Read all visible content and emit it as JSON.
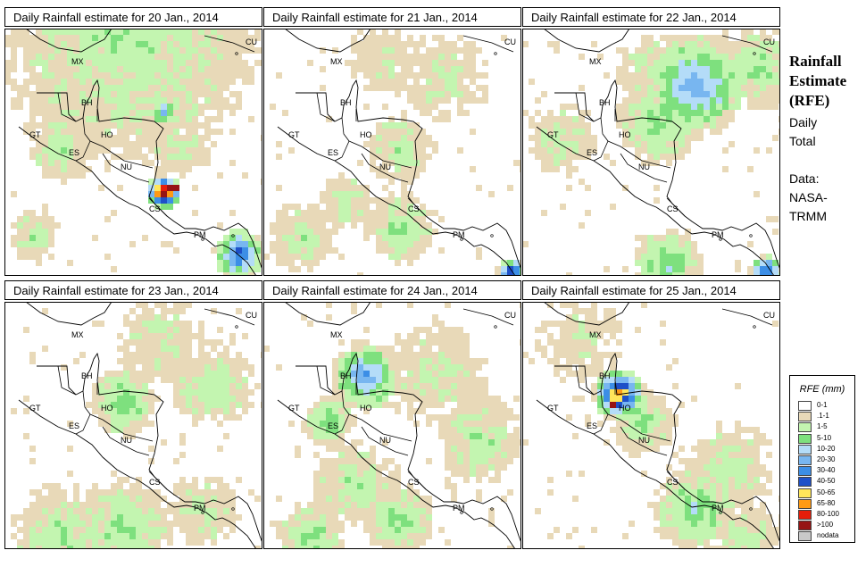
{
  "panels": [
    {
      "title": "Daily Rainfall estimate for  20 Jan., 2014",
      "seed": 20
    },
    {
      "title": "Daily Rainfall estimate for  21 Jan., 2014",
      "seed": 21
    },
    {
      "title": "Daily Rainfall estimate for  22 Jan., 2014",
      "seed": 22
    },
    {
      "title": "Daily Rainfall estimate for  23 Jan., 2014",
      "seed": 23
    },
    {
      "title": "Daily Rainfall estimate for  24 Jan., 2014",
      "seed": 24
    },
    {
      "title": "Daily Rainfall estimate for  25 Jan., 2014",
      "seed": 25
    }
  ],
  "country_labels": [
    "MX",
    "BH",
    "GT",
    "HO",
    "ES",
    "NU",
    "CS",
    "PM",
    "CU"
  ],
  "sidebar": {
    "title_line1": "Rainfall",
    "title_line2": "Estimate",
    "title_line3": "(RFE)",
    "daily": "Daily",
    "total": "Total",
    "data_label": "Data:",
    "source1": "NASA-",
    "source2": "TRMM"
  },
  "legend": {
    "title": "RFE (mm)",
    "items": [
      {
        "label": "0-1",
        "color": "#ffffff"
      },
      {
        "label": ".1-1",
        "color": "#e8d9b8"
      },
      {
        "label": "1-5",
        "color": "#c3f5b0"
      },
      {
        "label": "5-10",
        "color": "#7ee07e"
      },
      {
        "label": "10-20",
        "color": "#b4dcf8"
      },
      {
        "label": "20-30",
        "color": "#78b6f0"
      },
      {
        "label": "30-40",
        "color": "#3c8ee6"
      },
      {
        "label": "40-50",
        "color": "#1e50c8"
      },
      {
        "label": "50-65",
        "color": "#ffe65a"
      },
      {
        "label": "65-80",
        "color": "#ff9a14"
      },
      {
        "label": "80-100",
        "color": "#e61e0a"
      },
      {
        "label": ">100",
        "color": "#961414"
      },
      {
        "label": "nodata",
        "color": "#c8c8c8"
      }
    ]
  }
}
